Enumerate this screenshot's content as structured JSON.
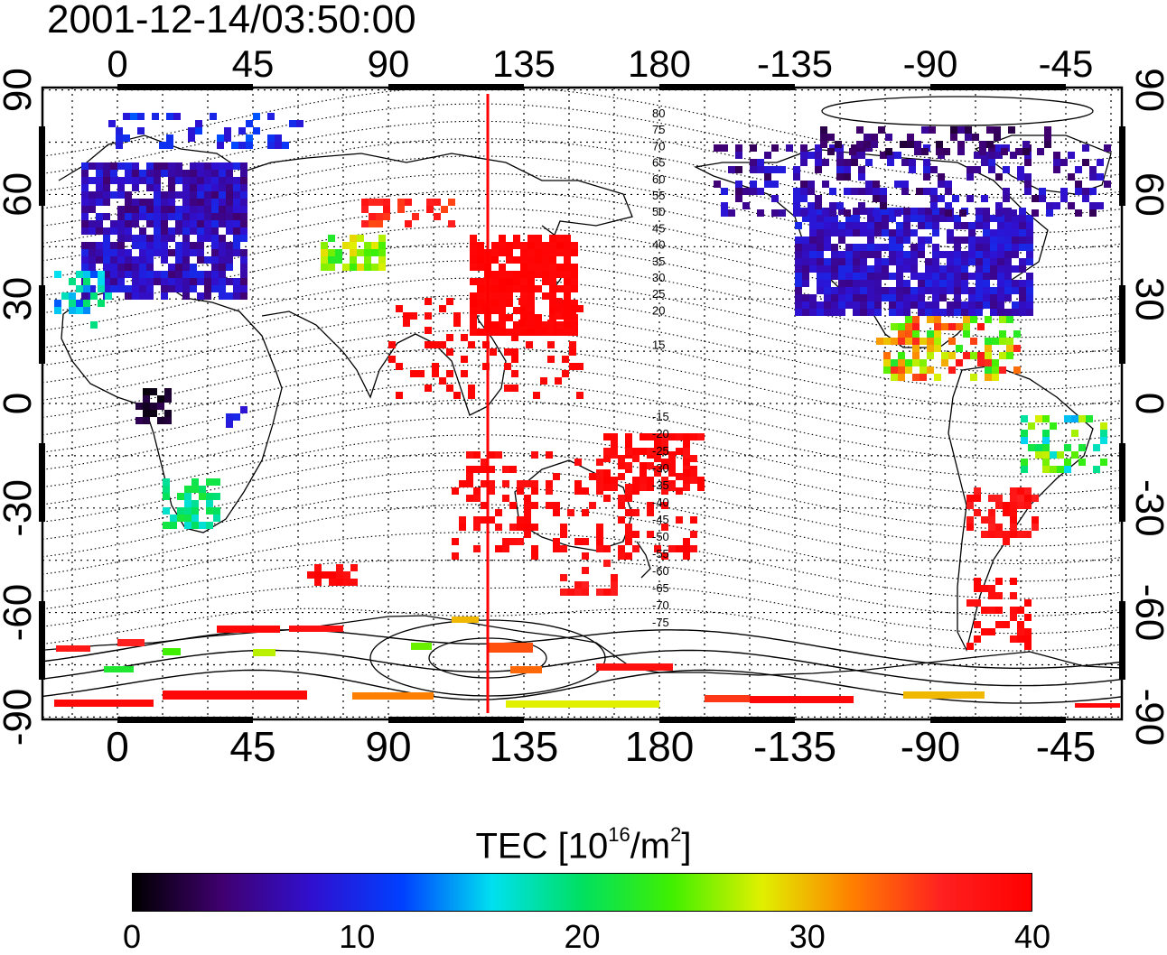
{
  "timestamp": "2001-12-14/03:50:00",
  "top_lon_ticks": [
    "0",
    "45",
    "90",
    "135",
    "180",
    "-135",
    "-90",
    "-45"
  ],
  "bottom_lon_ticks": [
    "0",
    "45",
    "90",
    "135",
    "180",
    "-135",
    "-90",
    "-45"
  ],
  "left_lat_ticks": [
    "90",
    "60",
    "30",
    "0",
    "-30",
    "-60",
    "-90"
  ],
  "right_lat_ticks": [
    "90",
    "60",
    "30",
    "0",
    "-30",
    "-60",
    "-90"
  ],
  "contour_labels_north": [
    "80",
    "75",
    "70",
    "65",
    "60",
    "55",
    "50",
    "45",
    "40",
    "35",
    "30",
    "25",
    "20",
    "15"
  ],
  "contour_labels_south": [
    "-15",
    "-20",
    "-25",
    "-30",
    "-35",
    "-40",
    "-45",
    "-50",
    "-55",
    "-60",
    "-65",
    "-70",
    "-75"
  ],
  "colorbar": {
    "title_main": "TEC  [10",
    "title_exp": "16",
    "title_mid": "/m",
    "title_exp2": "2",
    "title_end": "]",
    "min": 0,
    "max": 40,
    "tick_labels": [
      "0",
      "10",
      "20",
      "30",
      "40"
    ],
    "stops": [
      "#000000",
      "#400070",
      "#3010d0",
      "#0040ff",
      "#00e0f0",
      "#00e060",
      "#40f000",
      "#e0f000",
      "#ff8000",
      "#ff2020",
      "#ff0000"
    ]
  },
  "marker_longitude": 123,
  "colors": {
    "accent_line": "#ff0000"
  }
}
